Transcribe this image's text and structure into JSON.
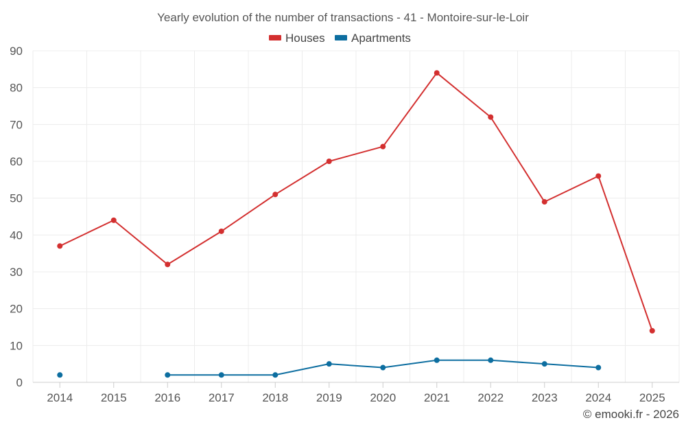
{
  "chart_data": {
    "type": "line",
    "title": "Yearly evolution of the number of transactions - 41 - Montoire-sur-le-Loir",
    "x": [
      "2014",
      "2015",
      "2016",
      "2017",
      "2018",
      "2019",
      "2020",
      "2021",
      "2022",
      "2023",
      "2024",
      "2025"
    ],
    "ylim": [
      0,
      90
    ],
    "yticks": [
      0,
      10,
      20,
      30,
      40,
      50,
      60,
      70,
      80,
      90
    ],
    "grid": true,
    "legend_position": "top-center",
    "series": [
      {
        "name": "Houses",
        "color": "#d32f2f",
        "values": [
          37,
          44,
          32,
          41,
          51,
          60,
          64,
          84,
          72,
          49,
          56,
          14
        ]
      },
      {
        "name": "Apartments",
        "color": "#0d6ea0",
        "values": [
          2,
          null,
          2,
          2,
          2,
          5,
          4,
          6,
          6,
          5,
          4,
          null
        ]
      }
    ],
    "credit": "© emooki.fr - 2026"
  }
}
